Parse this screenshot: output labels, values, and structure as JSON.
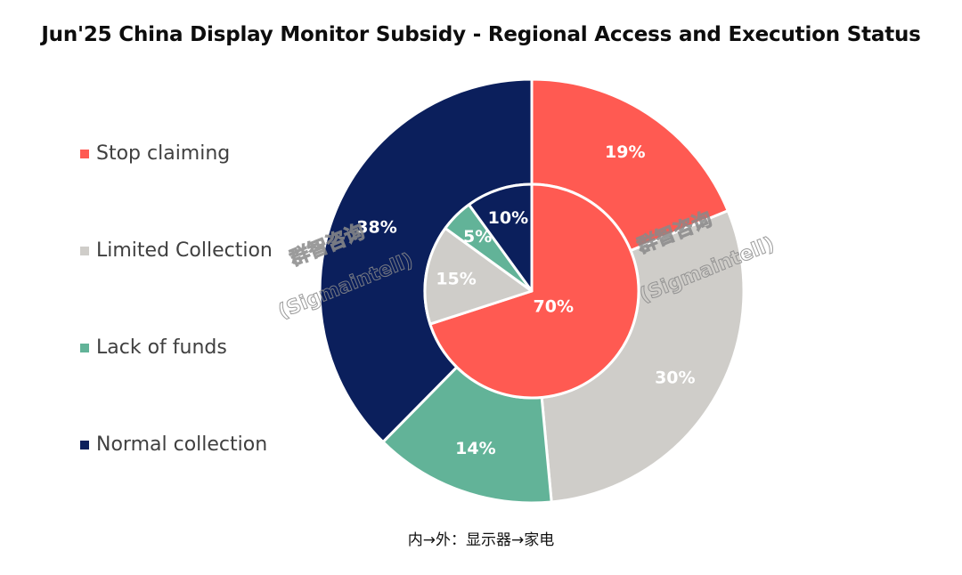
{
  "chart_data": {
    "type": "pie",
    "subtype": "nested-donut",
    "title": "Jun'25 China Display Monitor Subsidy - Regional Access and Execution Status",
    "legend_position": "left",
    "categories": [
      "Stop claiming",
      "Limited Collection",
      "Lack of funds",
      "Normal collection"
    ],
    "colors": [
      "#FF5A52",
      "#CFCDC9",
      "#62B398",
      "#0B1F5C"
    ],
    "series": [
      {
        "ring": "inner",
        "values": [
          70,
          15,
          5,
          10
        ],
        "labels": [
          "70%",
          "15%",
          "5%",
          "10%"
        ]
      },
      {
        "ring": "outer",
        "values": [
          19,
          30,
          14,
          38
        ],
        "labels": [
          "19%",
          "30%",
          "14%",
          "38%"
        ]
      }
    ],
    "footnote": "内→外：显示器→家电"
  },
  "watermark": {
    "line1": "群智咨询",
    "line2": "(Sigmaintell)"
  }
}
